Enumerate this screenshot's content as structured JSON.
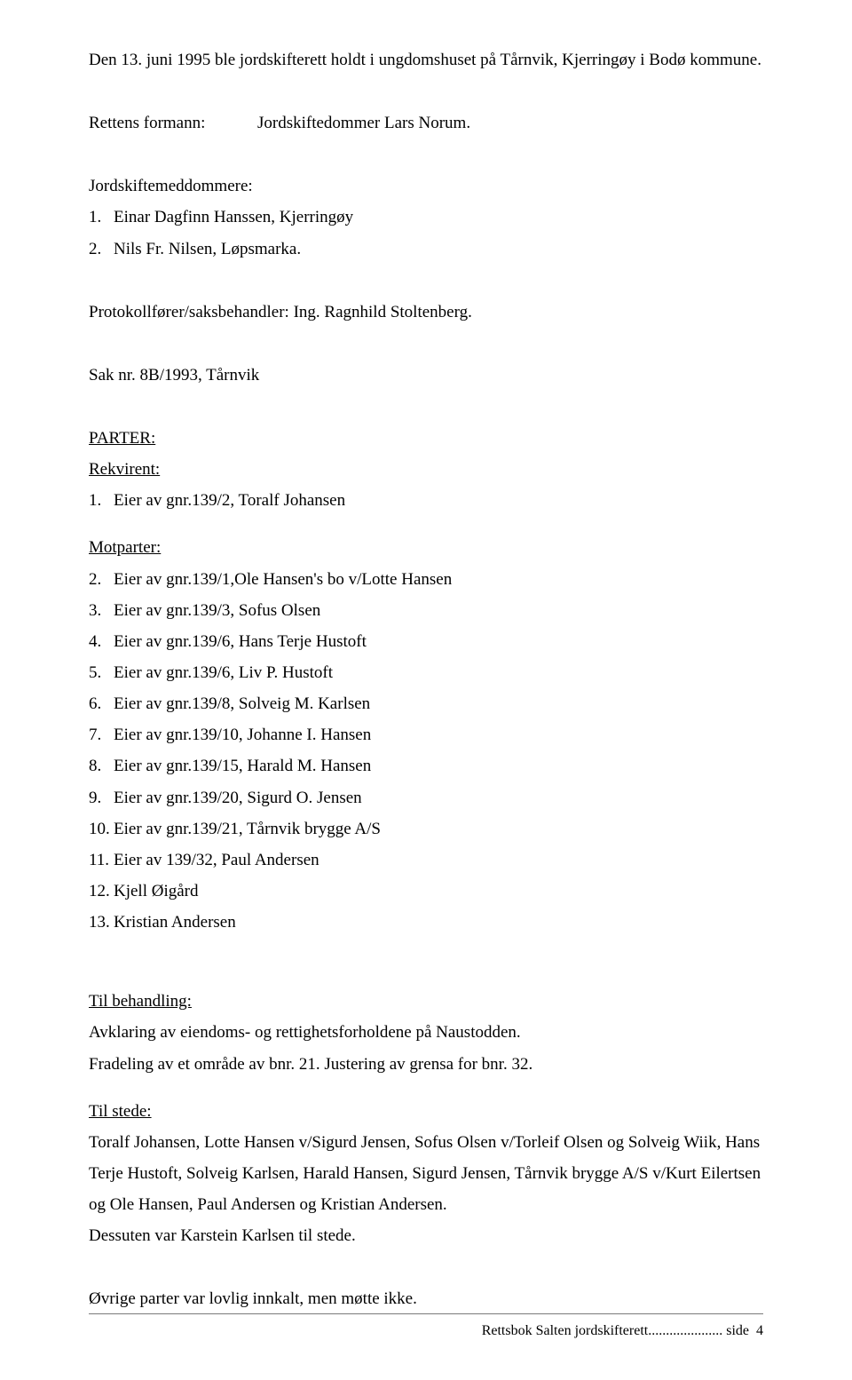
{
  "intro": "Den 13. juni 1995 ble jordskifterett holdt i ungdomshuset på Tårnvik, Kjerringøy i Bodø kommune.",
  "formann": {
    "label": "Rettens formann:",
    "value": "Jordskiftedommer Lars Norum."
  },
  "meddommere": {
    "label": "Jordskiftemeddommere:",
    "items": [
      "Einar Dagfinn Hanssen, Kjerringøy",
      "Nils Fr. Nilsen, Løpsmarka."
    ]
  },
  "protokoll": "Protokollfører/saksbehandler: Ing. Ragnhild Stoltenberg.",
  "saknr": "Sak nr. 8B/1993, Tårnvik",
  "parter_heading": "PARTER:",
  "rekvirent": {
    "label": "Rekvirent:",
    "items": [
      "Eier av gnr.139/2, Toralf Johansen"
    ]
  },
  "motparter": {
    "label": "Motparter:",
    "items": [
      "Eier av gnr.139/1,Ole Hansen's bo v/Lotte Hansen",
      "Eier av gnr.139/3, Sofus Olsen",
      "Eier av gnr.139/6, Hans Terje Hustoft",
      "Eier av gnr.139/6, Liv  P. Hustoft",
      "Eier av gnr.139/8, Solveig M. Karlsen",
      "Eier av gnr.139/10, Johanne I. Hansen",
      "Eier av gnr.139/15, Harald M. Hansen",
      "Eier av gnr.139/20, Sigurd O. Jensen",
      "Eier av gnr.139/21, Tårnvik brygge A/S",
      "Eier av 139/32, Paul Andersen",
      "Kjell Øigård",
      "Kristian Andersen"
    ]
  },
  "behandling": {
    "label": "Til behandling:",
    "text1": "Avklaring av eiendoms- og rettighetsforholdene på Naustodden.",
    "text2": "Fradeling av et område av bnr. 21. Justering av grensa for bnr. 32."
  },
  "stede": {
    "label": "Til stede:",
    "text": "Toralf Johansen, Lotte Hansen v/Sigurd Jensen, Sofus Olsen v/Torleif Olsen og Solveig Wiik, Hans Terje Hustoft, Solveig Karlsen, Harald Hansen, Sigurd Jensen, Tårnvik brygge A/S v/Kurt Eilertsen og Ole Hansen, Paul Andersen og Kristian Andersen.",
    "text2": "Dessuten var Karstein Karlsen til stede."
  },
  "ovrige": "Øvrige parter var lovlig innkalt, men møtte ikke.",
  "footer": {
    "text": "Rettsbok Salten jordskifterett",
    "dots": ".....................",
    "suffix": " side",
    "page": "4"
  }
}
